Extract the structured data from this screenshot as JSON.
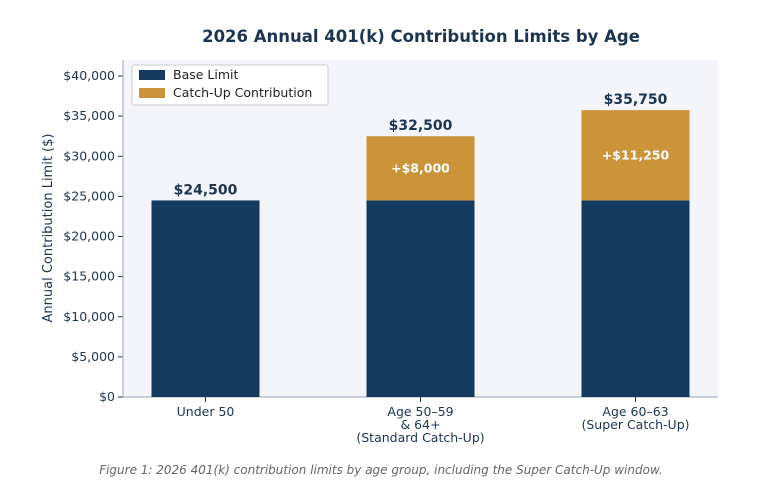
{
  "chart_data": {
    "type": "stacked_bar",
    "title": "2026 Annual 401(k) Contribution Limits by Age",
    "y_label": "Annual Contribution Limit ($)",
    "caption": "Figure 1: 2026 401(k) contribution limits by age group, including the Super Catch-Up window.",
    "categories": [
      "Under 50",
      "Age 50–59\n& 64+\n(Standard Catch-Up)",
      "Age 60–63\n(Super Catch-Up)"
    ],
    "series": [
      {
        "name": "Base Limit",
        "color": "#163a5f",
        "values": [
          24500,
          24500,
          24500
        ]
      },
      {
        "name": "Catch-Up Contribution",
        "color": "#cc9438",
        "values": [
          null,
          8000,
          11250
        ],
        "value_labels": [
          null,
          "+$8,000",
          "+$11,250"
        ]
      }
    ],
    "totals": [
      24500,
      32500,
      35750
    ],
    "total_labels": [
      "$24,500",
      "$32,500",
      "$35,750"
    ],
    "ylim": [
      0,
      42000
    ],
    "yticks": [
      {
        "value": 0,
        "label": "$0"
      },
      {
        "value": 5000,
        "label": "$5,000"
      },
      {
        "value": 10000,
        "label": "$10,000"
      },
      {
        "value": 15000,
        "label": "$15,000"
      },
      {
        "value": 20000,
        "label": "$20,000"
      },
      {
        "value": 25000,
        "label": "$25,000"
      },
      {
        "value": 30000,
        "label": "$30,000"
      },
      {
        "value": 35000,
        "label": "$35,000"
      },
      {
        "value": 40000,
        "label": "$40,000"
      }
    ],
    "legend": "upper left"
  }
}
